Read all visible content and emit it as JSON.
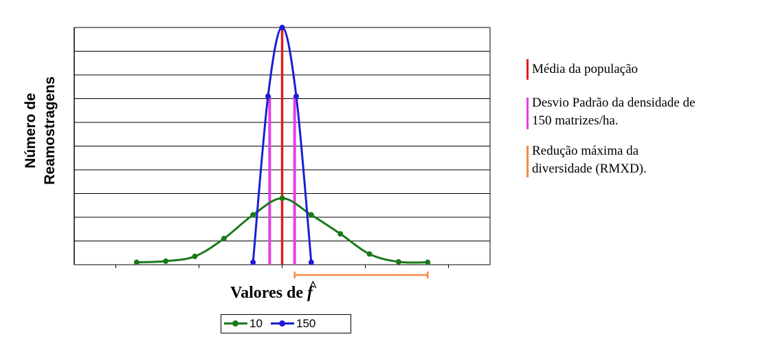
{
  "chart_data": {
    "type": "line",
    "title": "",
    "xlabel": "Valores de",
    "xlabel_symbol": "f",
    "xlabel_symbol_hat": "^",
    "ylabel_line1": "Número de",
    "ylabel_line2": "Reamostragens",
    "grid": true,
    "ylim": [
      0,
      10
    ],
    "xlim": [
      -2.5,
      2.5
    ],
    "series": [
      {
        "name": "10",
        "color": "#1a7a1a",
        "x": [
          -1.75,
          -1.4,
          -1.05,
          -0.7,
          -0.35,
          0.0,
          0.35,
          0.7,
          1.05,
          1.4,
          1.75
        ],
        "y": [
          0.1,
          0.15,
          0.35,
          1.1,
          2.1,
          2.8,
          2.1,
          1.3,
          0.45,
          0.12,
          0.1
        ]
      },
      {
        "name": "150",
        "color": "#1c1cd6",
        "x": [
          -0.35,
          -0.17,
          0.0,
          0.17,
          0.35
        ],
        "y": [
          0.1,
          7.1,
          10.0,
          7.1,
          0.1
        ]
      }
    ],
    "reference_lines": [
      {
        "key": "mean",
        "label": "Média da população",
        "color": "#e01b1b",
        "x": 0.0
      },
      {
        "key": "sd",
        "label": "Desvio Padrão da densidade de 150 matrizes/ha.",
        "color": "#e83ce8",
        "x": [
          -0.15,
          0.15
        ]
      },
      {
        "key": "rmxd",
        "label": "Redução máxima da diversidade (RMXD).",
        "color": "#f4894a",
        "x": [
          0.15,
          1.75
        ]
      }
    ],
    "legend": [
      {
        "label": "10",
        "color": "#1a7a1a"
      },
      {
        "label": "150",
        "color": "#1c1cd6"
      }
    ],
    "key": [
      {
        "line1": "Média da população",
        "line2": "",
        "color": "#e01b1b"
      },
      {
        "line1": "Desvio Padrão da densidade de",
        "line2": "150 matrizes/ha.",
        "color": "#e83ce8"
      },
      {
        "line1": "Redução máxima da",
        "line2": "diversidade (RMXD).",
        "color": "#f4894a"
      }
    ]
  }
}
